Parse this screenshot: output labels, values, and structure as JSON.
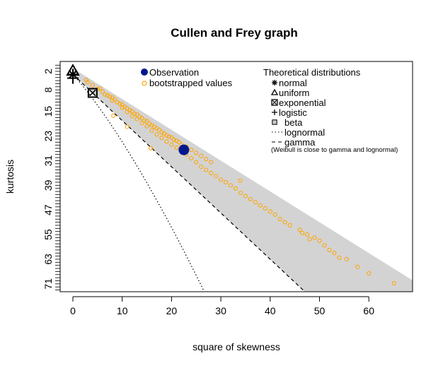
{
  "chart_data": {
    "type": "scatter",
    "title": "Cullen and Frey graph",
    "xlabel": "square of skewness",
    "ylabel": "kurtosis",
    "xlim": [
      -2.6,
      68.9
    ],
    "ylim": [
      73.6,
      -1.2
    ],
    "y_inverted": true,
    "x_ticks": [
      0,
      10,
      20,
      30,
      40,
      50,
      60
    ],
    "y_ticks": [
      2,
      8,
      15,
      23,
      31,
      39,
      47,
      55,
      63,
      71
    ],
    "grid": false,
    "colors": {
      "observation": "#00188F",
      "bootstrap": "#FFA500",
      "beta_region": "#D3D3D3"
    },
    "observation": {
      "label": "Observation",
      "x": 22.5,
      "y": 27.5
    },
    "bootstrap": {
      "label": "bootstrapped values",
      "points": [
        [
          2.7,
          4.8
        ],
        [
          3,
          5.5
        ],
        [
          4,
          6.5
        ],
        [
          5,
          7.8
        ],
        [
          5.5,
          7.5
        ],
        [
          6,
          8.6
        ],
        [
          6.5,
          9.5
        ],
        [
          7,
          9.8
        ],
        [
          7.5,
          10.2
        ],
        [
          8,
          10.5
        ],
        [
          8,
          11.5
        ],
        [
          8.2,
          16.4
        ],
        [
          8.5,
          11.2
        ],
        [
          9,
          12
        ],
        [
          9.5,
          12.5
        ],
        [
          10,
          12.8
        ],
        [
          10,
          13.8
        ],
        [
          10.5,
          13.5
        ],
        [
          11,
          14
        ],
        [
          11,
          15.2
        ],
        [
          11,
          20
        ],
        [
          11.5,
          14.6
        ],
        [
          12,
          15
        ],
        [
          12,
          16.5
        ],
        [
          12.5,
          15.8
        ],
        [
          13,
          16
        ],
        [
          13,
          17.5
        ],
        [
          13.5,
          16.8
        ],
        [
          14,
          17.2
        ],
        [
          14,
          18.8
        ],
        [
          14.5,
          18
        ],
        [
          15,
          18.2
        ],
        [
          15,
          19.8
        ],
        [
          15.5,
          19
        ],
        [
          15.8,
          27
        ],
        [
          16,
          19.5
        ],
        [
          16,
          21.2
        ],
        [
          16.5,
          20
        ],
        [
          17,
          20.5
        ],
        [
          17,
          22.5
        ],
        [
          17.5,
          21
        ],
        [
          18,
          21.8
        ],
        [
          18,
          23.6
        ],
        [
          18.5,
          22.2
        ],
        [
          19,
          22.8
        ],
        [
          19,
          24.8
        ],
        [
          19.5,
          23.2
        ],
        [
          20,
          23.5
        ],
        [
          20,
          25.8
        ],
        [
          20.5,
          24.2
        ],
        [
          21,
          24.5
        ],
        [
          21,
          26.8
        ],
        [
          21.5,
          25
        ],
        [
          22,
          25.8
        ],
        [
          22,
          28
        ],
        [
          23,
          26.5
        ],
        [
          23,
          29
        ],
        [
          24,
          27.5
        ],
        [
          24,
          30.2
        ],
        [
          25,
          28.5
        ],
        [
          25,
          31.5
        ],
        [
          26,
          29.5
        ],
        [
          26,
          33
        ],
        [
          27,
          30.5
        ],
        [
          27,
          34
        ],
        [
          28,
          31.5
        ],
        [
          28,
          35
        ],
        [
          29,
          36
        ],
        [
          30,
          37.2
        ],
        [
          31,
          38
        ],
        [
          32,
          39
        ],
        [
          33,
          40
        ],
        [
          33.9,
          37.5
        ],
        [
          34,
          41.5
        ],
        [
          35,
          42.5
        ],
        [
          36,
          43.5
        ],
        [
          37,
          44.5
        ],
        [
          38,
          45.5
        ],
        [
          39,
          46.5
        ],
        [
          40,
          47.5
        ],
        [
          41,
          48.5
        ],
        [
          42,
          50
        ],
        [
          43,
          51
        ],
        [
          44,
          52
        ],
        [
          46,
          53.5
        ],
        [
          46.5,
          54.5
        ],
        [
          47.5,
          55
        ],
        [
          48,
          56.5
        ],
        [
          49,
          56
        ],
        [
          50,
          57
        ],
        [
          51,
          58.5
        ],
        [
          52,
          60
        ],
        [
          53,
          61
        ],
        [
          54,
          62.5
        ],
        [
          55.5,
          63
        ],
        [
          57.7,
          65.5
        ],
        [
          60,
          67.6
        ],
        [
          65.1,
          70.8
        ]
      ]
    },
    "legend_theoretical": {
      "title": "Theoretical distributions",
      "items": [
        {
          "label": "normal",
          "symbol": "asterisk",
          "x": 0,
          "y": 3
        },
        {
          "label": "uniform",
          "symbol": "triangle",
          "x": 0,
          "y": 1.8
        },
        {
          "label": "exponential",
          "symbol": "boxed-x",
          "x": 4,
          "y": 9
        },
        {
          "label": "logistic",
          "symbol": "plus",
          "x": 0,
          "y": 4.2
        },
        {
          "label": "beta",
          "symbol": "gray-square"
        },
        {
          "label": "lognormal",
          "symbol": "dotted-line"
        },
        {
          "label": "gamma",
          "symbol": "dashed-line"
        }
      ],
      "note": "(Weibull is close to gamma and lognormal)"
    }
  }
}
